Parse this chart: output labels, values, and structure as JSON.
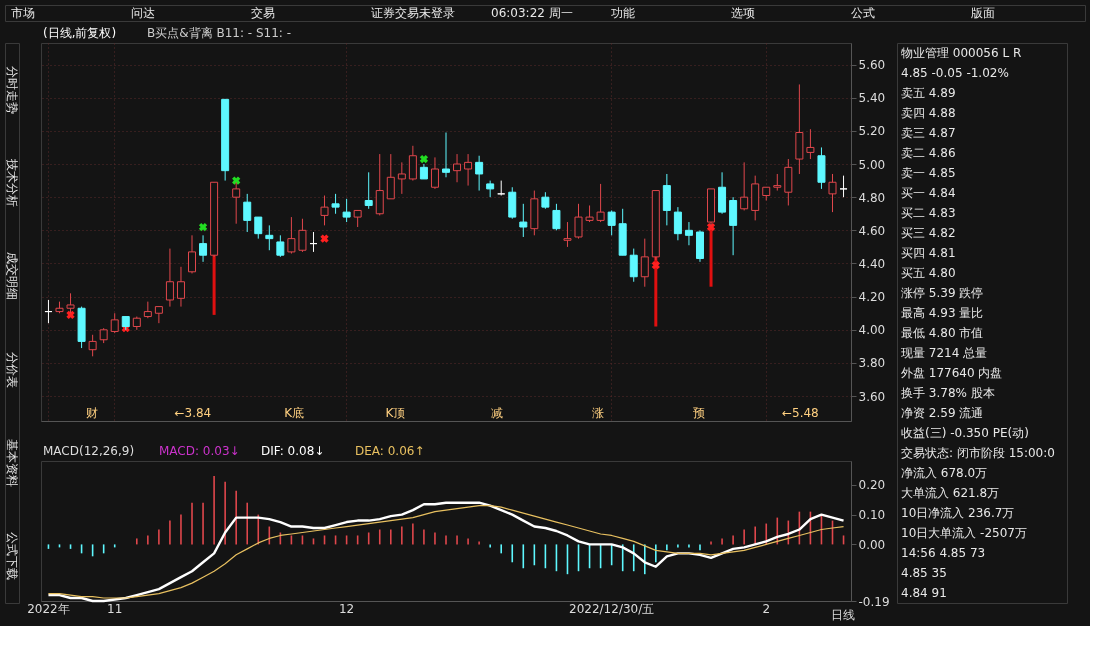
{
  "chart_data": [
    {
      "type": "other",
      "annotations": [
        "市场",
        "问达",
        "交易",
        "证券交易未登录",
        "06:03:22 周一",
        "功能",
        "选项",
        "公式",
        "版面"
      ]
    },
    {
      "type": "other",
      "annotations": [
        "分时走势",
        "技术分析",
        "成交明细",
        "分价表",
        "基本资料",
        "公式下载"
      ]
    },
    {
      "type": "candlestick",
      "title": "(日线,前复权)",
      "subtitle": "B买点&背离  B11: -  S11: -",
      "categories": [
        null,
        null,
        null,
        null,
        null,
        null,
        null,
        null,
        null,
        null,
        null,
        null,
        null,
        null,
        null,
        null,
        null,
        null,
        null,
        null,
        null,
        null,
        null,
        null,
        null,
        null,
        null,
        null,
        null,
        null,
        null,
        null,
        null,
        null,
        null,
        null,
        null,
        null,
        null,
        null,
        null,
        null,
        null,
        null,
        null,
        null,
        null,
        null,
        null,
        null,
        null,
        null,
        null,
        null,
        null,
        null,
        null,
        null,
        null,
        null,
        null,
        null,
        null,
        null,
        null,
        null,
        null,
        null,
        null,
        null,
        null,
        null,
        null
      ],
      "ohlc": [
        [
          4.11,
          4.18,
          4.04,
          4.11
        ],
        [
          4.11,
          4.17,
          4.1,
          4.13
        ],
        [
          4.13,
          4.22,
          4.1,
          4.15
        ],
        [
          4.13,
          4.14,
          3.89,
          3.93
        ],
        [
          3.88,
          3.97,
          3.84,
          3.93
        ],
        [
          3.94,
          4.01,
          3.92,
          4.0
        ],
        [
          3.99,
          4.1,
          3.98,
          4.06
        ],
        [
          4.08,
          4.08,
          4.0,
          4.02
        ],
        [
          4.02,
          4.08,
          4.0,
          4.07
        ],
        [
          4.08,
          4.17,
          4.07,
          4.11
        ],
        [
          4.1,
          4.14,
          4.04,
          4.14
        ],
        [
          4.18,
          4.49,
          4.14,
          4.29
        ],
        [
          4.19,
          4.38,
          4.14,
          4.29
        ],
        [
          4.35,
          4.57,
          4.34,
          4.47
        ],
        [
          4.52,
          4.57,
          4.41,
          4.45
        ],
        [
          4.45,
          4.89,
          4.44,
          4.89
        ],
        [
          5.39,
          5.39,
          4.9,
          4.96
        ],
        [
          4.8,
          4.89,
          4.64,
          4.85
        ],
        [
          4.77,
          4.82,
          4.59,
          4.66
        ],
        [
          4.68,
          4.68,
          4.55,
          4.58
        ],
        [
          4.57,
          4.63,
          4.48,
          4.55
        ],
        [
          4.53,
          4.57,
          4.44,
          4.45
        ],
        [
          4.47,
          4.68,
          4.46,
          4.55
        ],
        [
          4.48,
          4.67,
          4.47,
          4.6
        ],
        [
          4.52,
          4.59,
          4.47,
          4.52
        ],
        [
          4.69,
          4.81,
          4.63,
          4.74
        ],
        [
          4.76,
          4.82,
          4.7,
          4.74
        ],
        [
          4.71,
          4.79,
          4.65,
          4.68
        ],
        [
          4.68,
          4.72,
          4.62,
          4.72
        ],
        [
          4.78,
          4.95,
          4.73,
          4.75
        ],
        [
          4.7,
          5.06,
          4.69,
          4.84
        ],
        [
          4.79,
          5.06,
          4.79,
          4.92
        ],
        [
          4.91,
          5.01,
          4.82,
          4.94
        ],
        [
          4.91,
          5.11,
          4.9,
          5.05
        ],
        [
          4.98,
          5.0,
          4.91,
          4.91
        ],
        [
          4.86,
          5.04,
          4.85,
          4.97
        ],
        [
          4.97,
          5.19,
          4.92,
          4.95
        ],
        [
          4.96,
          5.06,
          4.89,
          5.0
        ],
        [
          4.97,
          5.06,
          4.87,
          5.01
        ],
        [
          5.01,
          5.05,
          4.84,
          4.94
        ],
        [
          4.88,
          4.9,
          4.8,
          4.85
        ],
        [
          4.82,
          4.9,
          4.81,
          4.82
        ],
        [
          4.83,
          4.86,
          4.67,
          4.68
        ],
        [
          4.65,
          4.76,
          4.56,
          4.62
        ],
        [
          4.61,
          4.84,
          4.57,
          4.79
        ],
        [
          4.8,
          4.83,
          4.73,
          4.74
        ],
        [
          4.72,
          4.76,
          4.6,
          4.61
        ],
        [
          4.54,
          4.65,
          4.5,
          4.55
        ],
        [
          4.56,
          4.76,
          4.55,
          4.68
        ],
        [
          4.66,
          4.75,
          4.65,
          4.68
        ],
        [
          4.66,
          4.88,
          4.65,
          4.71
        ],
        [
          4.71,
          4.72,
          4.57,
          4.63
        ],
        [
          4.64,
          4.73,
          4.45,
          4.45
        ],
        [
          4.45,
          4.49,
          4.29,
          4.32
        ],
        [
          4.32,
          4.55,
          4.26,
          4.44
        ],
        [
          4.44,
          4.84,
          4.42,
          4.84
        ],
        [
          4.87,
          4.94,
          4.63,
          4.72
        ],
        [
          4.71,
          4.74,
          4.54,
          4.58
        ],
        [
          4.6,
          4.65,
          4.51,
          4.57
        ],
        [
          4.59,
          4.6,
          4.41,
          4.43
        ],
        [
          4.65,
          4.85,
          4.63,
          4.85
        ],
        [
          4.86,
          4.95,
          4.7,
          4.71
        ],
        [
          4.78,
          4.8,
          4.45,
          4.63
        ],
        [
          4.73,
          5.01,
          4.72,
          4.8
        ],
        [
          4.72,
          4.93,
          4.66,
          4.88
        ],
        [
          4.81,
          4.86,
          4.78,
          4.86
        ],
        [
          4.86,
          4.94,
          4.84,
          4.87
        ],
        [
          4.83,
          5.03,
          4.75,
          4.98
        ],
        [
          5.03,
          5.48,
          4.94,
          5.19
        ],
        [
          5.07,
          5.21,
          5.03,
          5.1
        ],
        [
          5.05,
          5.1,
          4.85,
          4.89
        ],
        [
          4.82,
          4.94,
          4.71,
          4.89
        ],
        [
          4.85,
          4.93,
          4.8,
          4.85
        ]
      ],
      "colors": [
        "#ffffff",
        "#e0474c",
        "#e0474c",
        "#5ef8ff",
        "#e0474c",
        "#e0474c",
        "#e0474c",
        "#5ef8ff",
        "#e0474c",
        "#e0474c",
        "#e0474c",
        "#e0474c",
        "#e0474c",
        "#e0474c",
        "#5ef8ff",
        "#e0474c",
        "#5ef8ff",
        "#e0474c",
        "#5ef8ff",
        "#5ef8ff",
        "#5ef8ff",
        "#5ef8ff",
        "#e0474c",
        "#e0474c",
        "#ffffff",
        "#e0474c",
        "#5ef8ff",
        "#5ef8ff",
        "#e0474c",
        "#5ef8ff",
        "#e0474c",
        "#e0474c",
        "#e0474c",
        "#e0474c",
        "#5ef8ff",
        "#e0474c",
        "#5ef8ff",
        "#e0474c",
        "#e0474c",
        "#5ef8ff",
        "#5ef8ff",
        "#ffffff",
        "#5ef8ff",
        "#5ef8ff",
        "#e0474c",
        "#5ef8ff",
        "#5ef8ff",
        "#e0474c",
        "#e0474c",
        "#e0474c",
        "#e0474c",
        "#5ef8ff",
        "#5ef8ff",
        "#5ef8ff",
        "#e0474c",
        "#e0474c",
        "#5ef8ff",
        "#5ef8ff",
        "#5ef8ff",
        "#5ef8ff",
        "#e0474c",
        "#5ef8ff",
        "#5ef8ff",
        "#e0474c",
        "#e0474c",
        "#e0474c",
        "#e0474c",
        "#e0474c",
        "#e0474c",
        "#e0474c",
        "#5ef8ff",
        "#e0474c",
        "#ffffff"
      ],
      "series": [
        {
          "type": "bar",
          "color": "#e01010",
          "base": [
            null,
            null,
            null,
            null,
            null,
            null,
            null,
            null,
            null,
            null,
            null,
            null,
            null,
            null,
            null,
            4.09,
            null,
            null,
            null,
            null,
            null,
            null,
            null,
            null,
            null,
            null,
            null,
            null,
            null,
            null,
            null,
            null,
            null,
            null,
            null,
            null,
            null,
            null,
            null,
            null,
            null,
            null,
            null,
            null,
            null,
            null,
            null,
            null,
            null,
            null,
            null,
            null,
            null,
            null,
            null,
            4.02,
            null,
            null,
            null,
            null,
            4.26,
            null,
            null,
            null,
            null,
            null,
            null,
            null,
            null,
            null,
            null,
            null,
            null
          ],
          "values": [
            null,
            null,
            null,
            null,
            null,
            null,
            null,
            null,
            null,
            null,
            null,
            null,
            null,
            null,
            null,
            0.36,
            null,
            null,
            null,
            null,
            null,
            null,
            null,
            null,
            null,
            null,
            null,
            null,
            null,
            null,
            null,
            null,
            null,
            null,
            null,
            null,
            null,
            null,
            null,
            null,
            null,
            null,
            null,
            null,
            null,
            null,
            null,
            null,
            null,
            null,
            null,
            null,
            null,
            null,
            null,
            0.42,
            null,
            null,
            null,
            null,
            0.37,
            null,
            null,
            null,
            null,
            null,
            null,
            null,
            null,
            null,
            null,
            null,
            null
          ]
        },
        {
          "type": "scatter",
          "color": "#ff2020",
          "values": [
            null,
            null,
            4.09,
            null,
            null,
            null,
            null,
            4.01,
            null,
            null,
            null,
            null,
            null,
            null,
            null,
            null,
            null,
            null,
            null,
            null,
            null,
            null,
            null,
            null,
            null,
            4.55,
            null,
            null,
            null,
            null,
            null,
            null,
            null,
            null,
            null,
            null,
            null,
            null,
            null,
            null,
            null,
            null,
            null,
            null,
            null,
            null,
            null,
            null,
            null,
            null,
            null,
            null,
            null,
            null,
            null,
            4.39,
            null,
            null,
            null,
            null,
            4.62,
            null,
            null,
            null,
            null,
            null,
            null,
            null,
            null,
            null,
            null,
            null,
            null
          ]
        },
        {
          "type": "scatter",
          "color": "#22dd22",
          "values": [
            null,
            null,
            null,
            null,
            null,
            null,
            null,
            null,
            null,
            null,
            null,
            null,
            null,
            null,
            4.62,
            null,
            null,
            4.9,
            null,
            null,
            null,
            null,
            null,
            null,
            null,
            null,
            null,
            null,
            null,
            null,
            null,
            null,
            null,
            null,
            5.03,
            null,
            null,
            null,
            null,
            null,
            null,
            null,
            null,
            null,
            null,
            null,
            null,
            null,
            null,
            null,
            null,
            null,
            null,
            null,
            null,
            null,
            null,
            null,
            null,
            null,
            null,
            null,
            null,
            null,
            null,
            null,
            null,
            null,
            null,
            null,
            null,
            null,
            null
          ]
        }
      ],
      "marker": "cross",
      "ylim": [
        3.45,
        5.73
      ],
      "yticks": [
        {
          "value": 3.6,
          "label": "3.60"
        },
        {
          "value": 3.8,
          "label": "3.80"
        },
        {
          "value": 4.0,
          "label": "4.00"
        },
        {
          "value": 4.2,
          "label": "4.20"
        },
        {
          "value": 4.4,
          "label": "4.40"
        },
        {
          "value": 4.6,
          "label": "4.60"
        },
        {
          "value": 4.8,
          "label": "4.80"
        },
        {
          "value": 5.0,
          "label": "5.00"
        },
        {
          "value": 5.2,
          "label": "5.20"
        },
        {
          "value": 5.4,
          "label": "5.40"
        },
        {
          "value": 5.6,
          "label": "5.60"
        }
      ],
      "grid": true,
      "tick_labels": "y",
      "annotations": [
        "财",
        "←3.84",
        "K底",
        "K顶",
        "减",
        "涨",
        "预",
        "←5.48"
      ]
    },
    {
      "type": "bar",
      "title": "MACD(12,26,9)",
      "categories": [
        "2022年",
        null,
        null,
        null,
        null,
        null,
        "11",
        null,
        null,
        null,
        null,
        null,
        null,
        null,
        null,
        null,
        null,
        null,
        null,
        null,
        null,
        null,
        null,
        null,
        null,
        null,
        null,
        "12",
        null,
        null,
        null,
        null,
        null,
        null,
        null,
        null,
        null,
        null,
        null,
        null,
        null,
        null,
        null,
        null,
        null,
        null,
        null,
        null,
        null,
        null,
        null,
        "2022/12/30/五",
        null,
        null,
        null,
        null,
        null,
        null,
        null,
        null,
        null,
        null,
        null,
        null,
        null,
        "2",
        null,
        null,
        null,
        null,
        null,
        null,
        null
      ],
      "series": [
        {
          "type": "bar",
          "name": "MACD: 0.03↓",
          "color": "#cc33cc",
          "values": [
            -0.015,
            -0.01,
            -0.015,
            -0.03,
            -0.04,
            -0.03,
            -0.01,
            0.0,
            0.02,
            0.03,
            0.05,
            0.08,
            0.1,
            0.14,
            0.14,
            0.23,
            0.21,
            0.18,
            0.14,
            0.1,
            0.06,
            0.04,
            0.03,
            0.03,
            0.02,
            0.03,
            0.03,
            0.03,
            0.03,
            0.04,
            0.05,
            0.05,
            0.06,
            0.07,
            0.05,
            0.04,
            0.03,
            0.03,
            0.02,
            0.01,
            -0.01,
            -0.03,
            -0.06,
            -0.08,
            -0.07,
            -0.08,
            -0.09,
            -0.1,
            -0.09,
            -0.08,
            -0.08,
            -0.07,
            -0.09,
            -0.09,
            -0.1,
            -0.06,
            -0.02,
            -0.01,
            -0.01,
            -0.02,
            0.01,
            0.02,
            0.03,
            0.05,
            0.06,
            0.07,
            0.09,
            0.08,
            0.11,
            0.11,
            0.1,
            0.08,
            0.03
          ],
          "colors": [
            "#5ef8ff",
            "#5ef8ff",
            "#5ef8ff",
            "#5ef8ff",
            "#5ef8ff",
            "#5ef8ff",
            "#5ef8ff",
            "#e0474c",
            "#e0474c",
            "#e0474c",
            "#e0474c",
            "#e0474c",
            "#e0474c",
            "#e0474c",
            "#e0474c",
            "#e0474c",
            "#e0474c",
            "#e0474c",
            "#e0474c",
            "#e0474c",
            "#e0474c",
            "#e0474c",
            "#e0474c",
            "#e0474c",
            "#e0474c",
            "#e0474c",
            "#e0474c",
            "#e0474c",
            "#e0474c",
            "#e0474c",
            "#e0474c",
            "#e0474c",
            "#e0474c",
            "#e0474c",
            "#e0474c",
            "#e0474c",
            "#e0474c",
            "#e0474c",
            "#e0474c",
            "#e0474c",
            "#5ef8ff",
            "#5ef8ff",
            "#5ef8ff",
            "#5ef8ff",
            "#5ef8ff",
            "#5ef8ff",
            "#5ef8ff",
            "#5ef8ff",
            "#5ef8ff",
            "#5ef8ff",
            "#5ef8ff",
            "#5ef8ff",
            "#5ef8ff",
            "#5ef8ff",
            "#5ef8ff",
            "#5ef8ff",
            "#5ef8ff",
            "#5ef8ff",
            "#5ef8ff",
            "#5ef8ff",
            "#e0474c",
            "#e0474c",
            "#e0474c",
            "#e0474c",
            "#e0474c",
            "#e0474c",
            "#e0474c",
            "#e0474c",
            "#e0474c",
            "#e0474c",
            "#e0474c",
            "#e0474c",
            "#e0474c"
          ]
        },
        {
          "type": "line",
          "name": "DIF: 0.08↓",
          "color": "#ffffff",
          "values": [
            -0.17,
            -0.17,
            -0.18,
            -0.18,
            -0.19,
            -0.19,
            -0.185,
            -0.18,
            -0.17,
            -0.16,
            -0.15,
            -0.13,
            -0.11,
            -0.09,
            -0.06,
            -0.03,
            0.04,
            0.09,
            0.09,
            0.09,
            0.085,
            0.075,
            0.06,
            0.06,
            0.055,
            0.055,
            0.065,
            0.075,
            0.08,
            0.08,
            0.085,
            0.095,
            0.1,
            0.115,
            0.135,
            0.135,
            0.14,
            0.14,
            0.14,
            0.14,
            0.13,
            0.115,
            0.1,
            0.08,
            0.06,
            0.055,
            0.045,
            0.03,
            0.01,
            0.0,
            0.0,
            0.0,
            -0.01,
            -0.03,
            -0.06,
            -0.075,
            -0.04,
            -0.03,
            -0.03,
            -0.035,
            -0.045,
            -0.03,
            -0.015,
            -0.01,
            0.0,
            0.01,
            0.025,
            0.035,
            0.05,
            0.085,
            0.1,
            0.09,
            0.08
          ]
        },
        {
          "type": "line",
          "name": "DEA: 0.06↑",
          "color": "#e8c060",
          "values": [
            -0.165,
            -0.165,
            -0.17,
            -0.175,
            -0.175,
            -0.18,
            -0.18,
            -0.18,
            -0.175,
            -0.17,
            -0.165,
            -0.155,
            -0.145,
            -0.13,
            -0.11,
            -0.09,
            -0.065,
            -0.035,
            -0.015,
            0.005,
            0.02,
            0.03,
            0.035,
            0.04,
            0.045,
            0.05,
            0.055,
            0.06,
            0.065,
            0.07,
            0.075,
            0.08,
            0.085,
            0.09,
            0.1,
            0.11,
            0.115,
            0.12,
            0.125,
            0.13,
            0.13,
            0.125,
            0.115,
            0.105,
            0.095,
            0.085,
            0.075,
            0.065,
            0.055,
            0.045,
            0.035,
            0.03,
            0.02,
            0.01,
            -0.005,
            -0.02,
            -0.025,
            -0.03,
            -0.03,
            -0.03,
            -0.035,
            -0.03,
            -0.025,
            -0.02,
            -0.01,
            0.0,
            0.01,
            0.02,
            0.03,
            0.04,
            0.05,
            0.055,
            0.06
          ]
        }
      ],
      "ylim": [
        -0.19,
        0.28
      ],
      "yticks": [
        -0.19,
        {
          "value": 0.0,
          "label": "0.00"
        },
        {
          "value": 0.1,
          "label": "0.10"
        },
        {
          "value": 0.2,
          "label": "0.20"
        }
      ],
      "legend": "top left",
      "annotations": [
        "日线"
      ]
    },
    {
      "type": "other",
      "annotations": [
        "物业管理  000056  L R",
        "4.85  -0.05  -1.02%",
        "卖五  4.89",
        "卖四  4.88",
        "卖三  4.87",
        "卖二  4.86",
        "卖一  4.85",
        "买一  4.84",
        "买二  4.83",
        "买三  4.82",
        "买四  4.81",
        "买五  4.80",
        "涨停  5.39  跌停",
        "最高  4.93  量比",
        "最低  4.80  市值",
        "现量  7214  总量",
        "外盘  177640  内盘",
        "换手  3.78%  股本",
        "净资  2.59  流通",
        "收益(三)  -0.350  PE(动)",
        "交易状态: 闭市阶段 15:00:0",
        "净流入  678.0万",
        "大单流入  621.8万",
        "10日净流入  236.7万",
        "10日大单流入  -2507万",
        "14:56  4.85  73",
        "4.85  35",
        "4.84  91"
      ]
    }
  ]
}
